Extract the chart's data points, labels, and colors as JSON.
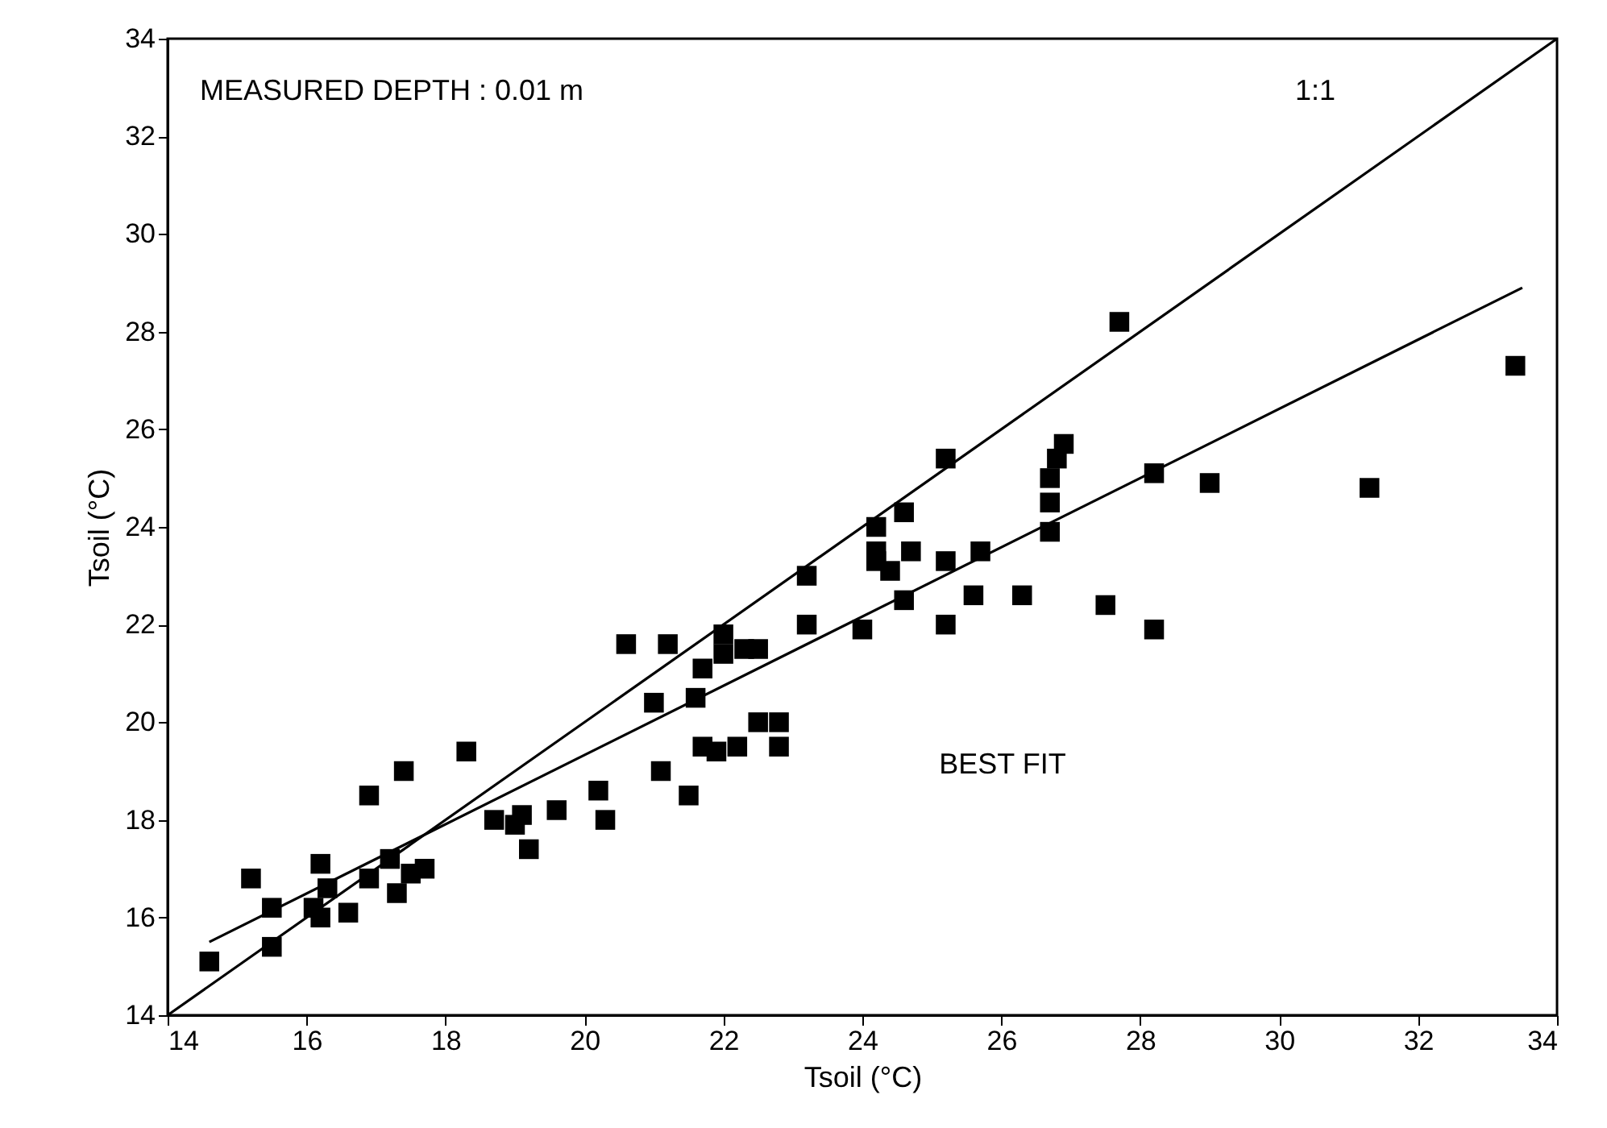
{
  "chart_data": {
    "type": "scatter",
    "xlabel": "Tsoil (°C)",
    "ylabel": "Tsoil (°C)",
    "xlim": [
      14,
      34
    ],
    "ylim": [
      14,
      34
    ],
    "xticks": [
      14,
      16,
      18,
      20,
      22,
      24,
      26,
      28,
      30,
      32,
      34
    ],
    "yticks": [
      14,
      16,
      18,
      20,
      22,
      24,
      26,
      28,
      30,
      32,
      34
    ],
    "grid": false,
    "annotations": [
      "MEASURED DEPTH : 0.01 m",
      "1:1",
      "BEST FIT"
    ],
    "series": [
      {
        "marker": "square",
        "color": "#000000",
        "x": [
          14.6,
          15.2,
          15.5,
          15.5,
          16.1,
          16.2,
          16.2,
          16.3,
          16.6,
          16.9,
          16.9,
          17.2,
          17.3,
          17.4,
          17.5,
          17.7,
          18.3,
          18.7,
          19.0,
          19.1,
          19.2,
          19.6,
          20.2,
          20.3,
          20.6,
          21.2,
          21.0,
          21.6,
          21.7,
          22.0,
          22.0,
          22.3,
          22.5,
          23.2,
          23.2,
          21.1,
          21.5,
          21.7,
          21.9,
          22.2,
          22.5,
          22.8,
          22.8,
          24.0,
          24.6,
          24.2,
          24.6,
          24.2,
          24.2,
          24.4,
          24.7,
          25.2,
          25.7,
          25.2,
          25.6,
          26.3,
          27.7,
          25.2,
          26.7,
          26.7,
          26.7,
          26.8,
          26.9,
          28.2,
          27.5,
          28.2,
          29.0,
          31.3,
          33.4
        ],
        "values": [
          15.1,
          16.8,
          16.2,
          15.4,
          16.2,
          17.1,
          16.0,
          16.6,
          16.1,
          18.5,
          16.8,
          17.2,
          16.5,
          19.0,
          16.9,
          17.0,
          19.4,
          18.0,
          17.9,
          18.1,
          17.4,
          18.2,
          18.6,
          18.0,
          21.6,
          21.6,
          20.4,
          20.5,
          21.1,
          21.8,
          21.4,
          21.5,
          21.5,
          22.0,
          23.0,
          19.0,
          18.5,
          19.5,
          19.4,
          19.5,
          20.0,
          20.0,
          19.5,
          21.9,
          22.5,
          24.0,
          24.3,
          23.5,
          23.3,
          23.1,
          23.5,
          23.3,
          23.5,
          22.0,
          22.6,
          22.6,
          28.2,
          25.4,
          25.0,
          24.5,
          23.9,
          25.4,
          25.7,
          25.1,
          22.4,
          21.9,
          24.9,
          24.8,
          27.3
        ]
      },
      {
        "type": "line",
        "color": "#000000",
        "x": [
          14,
          34
        ],
        "values": [
          14,
          34
        ]
      },
      {
        "type": "line",
        "color": "#000000",
        "x": [
          14.6,
          33.5
        ],
        "values": [
          15.5,
          28.9
        ]
      }
    ]
  }
}
